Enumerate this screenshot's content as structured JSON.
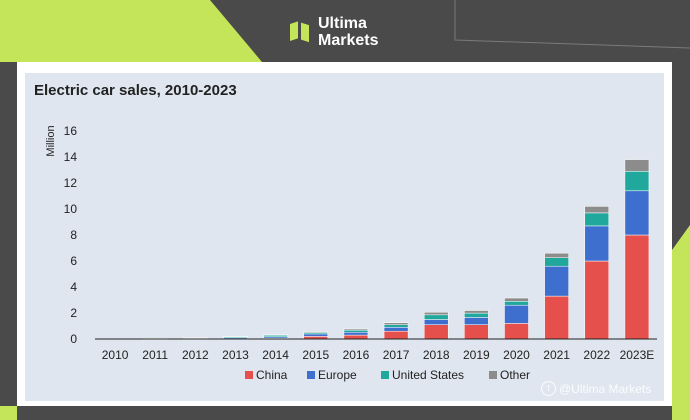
{
  "brand": {
    "line1": "Ultima",
    "line2": "Markets",
    "accent_color": "#c4e45a"
  },
  "watermark": {
    "text": "@Ultima Markets"
  },
  "chart_data": {
    "type": "bar",
    "stacked": true,
    "title": "Electric car sales, 2010-2023",
    "ylabel": "Million",
    "xlabel": "",
    "ylim": [
      0,
      16
    ],
    "yticks": [
      0,
      2,
      4,
      6,
      8,
      10,
      12,
      14,
      16
    ],
    "grid": false,
    "legend_position": "bottom",
    "categories": [
      "2010",
      "2011",
      "2012",
      "2013",
      "2014",
      "2015",
      "2016",
      "2017",
      "2018",
      "2019",
      "2020",
      "2021",
      "2022",
      "2023E"
    ],
    "series": [
      {
        "name": "China",
        "color": "#e5504c",
        "values": [
          0.0,
          0.01,
          0.02,
          0.02,
          0.07,
          0.2,
          0.3,
          0.6,
          1.1,
          1.1,
          1.2,
          3.3,
          6.0,
          8.0
        ]
      },
      {
        "name": "Europe",
        "color": "#3e6fce",
        "values": [
          0.0,
          0.01,
          0.03,
          0.07,
          0.1,
          0.19,
          0.22,
          0.3,
          0.4,
          0.56,
          1.4,
          2.3,
          2.7,
          3.4
        ]
      },
      {
        "name": "United States",
        "color": "#1fa89b",
        "values": [
          0.0,
          0.02,
          0.05,
          0.1,
          0.12,
          0.11,
          0.16,
          0.2,
          0.36,
          0.33,
          0.3,
          0.65,
          1.0,
          1.5
        ]
      },
      {
        "name": "Other",
        "color": "#8c8c8c",
        "values": [
          0.0,
          0.0,
          0.01,
          0.02,
          0.04,
          0.07,
          0.09,
          0.15,
          0.2,
          0.2,
          0.25,
          0.35,
          0.5,
          0.9
        ]
      }
    ]
  }
}
